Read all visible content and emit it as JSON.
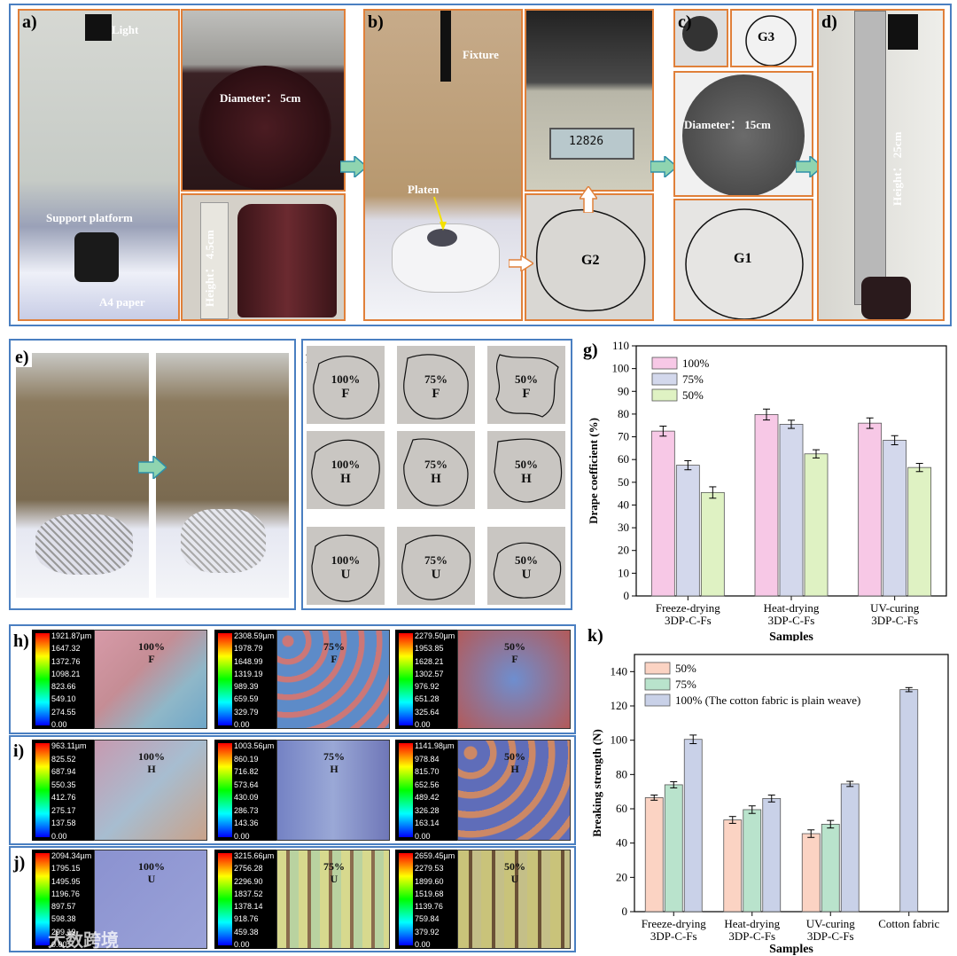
{
  "panels": {
    "a": {
      "label": "a)",
      "light": "Light",
      "support": "Support platform",
      "paper": "A4 paper",
      "diameter": "Diameter： 5cm",
      "height": "Height： 4.5cm"
    },
    "b": {
      "label": "b)",
      "fixture": "Fixture",
      "platen": "Platen",
      "scale_reading": "12826",
      "g2": "G2"
    },
    "c": {
      "label": "c)",
      "g3": "G3",
      "diameter": "Diameter： 15cm",
      "g1": "G1"
    },
    "d": {
      "label": "d)",
      "height": "Height： 25cm"
    },
    "e": {
      "label": "e)"
    },
    "f": {
      "label": "f)",
      "cells": [
        {
          "pct": "100%",
          "code": "F"
        },
        {
          "pct": "75%",
          "code": "F"
        },
        {
          "pct": "50%",
          "code": "F"
        },
        {
          "pct": "100%",
          "code": "H"
        },
        {
          "pct": "75%",
          "code": "H"
        },
        {
          "pct": "50%",
          "code": "H"
        },
        {
          "pct": "100%",
          "code": "U"
        },
        {
          "pct": "75%",
          "code": "U"
        },
        {
          "pct": "50%",
          "code": "U"
        }
      ]
    },
    "h": {
      "label": "h)",
      "code": "F",
      "maps": [
        {
          "pct": "100%",
          "scale": [
            "1921.87µm",
            "1647.32",
            "1372.76",
            "1098.21",
            "823.66",
            "549.10",
            "274.55",
            "0.00"
          ]
        },
        {
          "pct": "75%",
          "scale": [
            "2308.59µm",
            "1978.79",
            "1648.99",
            "1319.19",
            "989.39",
            "659.59",
            "329.79",
            "0.00"
          ]
        },
        {
          "pct": "50%",
          "scale": [
            "2279.50µm",
            "1953.85",
            "1628.21",
            "1302.57",
            "976.92",
            "651.28",
            "325.64",
            "0.00"
          ]
        }
      ]
    },
    "i": {
      "label": "i)",
      "code": "H",
      "maps": [
        {
          "pct": "100%",
          "scale": [
            "963.11µm",
            "825.52",
            "687.94",
            "550.35",
            "412.76",
            "275.17",
            "137.58",
            "0.00"
          ]
        },
        {
          "pct": "75%",
          "scale": [
            "1003.56µm",
            "860.19",
            "716.82",
            "573.64",
            "430.09",
            "286.73",
            "143.36",
            "0.00"
          ]
        },
        {
          "pct": "50%",
          "scale": [
            "1141.98µm",
            "978.84",
            "815.70",
            "652.56",
            "489.42",
            "326.28",
            "163.14",
            "0.00"
          ]
        }
      ]
    },
    "j": {
      "label": "j)",
      "code": "U",
      "maps": [
        {
          "pct": "100%",
          "scale": [
            "2094.34µm",
            "1795.15",
            "1495.95",
            "1196.76",
            "897.57",
            "598.38",
            "299.19",
            "0.00"
          ]
        },
        {
          "pct": "75%",
          "scale": [
            "3215.66µm",
            "2756.28",
            "2296.90",
            "1837.52",
            "1378.14",
            "918.76",
            "459.38",
            "0.00"
          ]
        },
        {
          "pct": "50%",
          "scale": [
            "2659.45µm",
            "2279.53",
            "1899.60",
            "1519.68",
            "1139.76",
            "759.84",
            "379.92",
            "0.00"
          ]
        }
      ]
    },
    "k": {
      "label": "k)"
    },
    "g": {
      "label": "g)"
    }
  },
  "watermark": "大数跨境",
  "chart_data": [
    {
      "id": "g",
      "type": "bar",
      "title": "",
      "xlabel": "Samples",
      "ylabel": "Drape coefficient (%)",
      "ylim": [
        0,
        110
      ],
      "yticks": [
        0,
        10,
        20,
        30,
        40,
        50,
        60,
        70,
        80,
        90,
        100,
        110
      ],
      "categories": [
        [
          "Freeze-drying",
          "3DP-C-Fs"
        ],
        [
          "Heat-drying",
          "3DP-C-Fs"
        ],
        [
          "UV-curing",
          "3DP-C-Fs"
        ]
      ],
      "legend_position": "top-left",
      "series": [
        {
          "name": "100%",
          "values": [
            72.5,
            79.8,
            76.0
          ],
          "errors": [
            2.2,
            2.4,
            2.3
          ],
          "color": "#f7c8e6"
        },
        {
          "name": "75%",
          "values": [
            57.5,
            75.5,
            68.5
          ],
          "errors": [
            2.0,
            1.8,
            2.0
          ],
          "color": "#d3d8ec"
        },
        {
          "name": "50%",
          "values": [
            45.5,
            62.5,
            56.5
          ],
          "errors": [
            2.5,
            1.8,
            1.8
          ],
          "color": "#dff2c3"
        }
      ]
    },
    {
      "id": "k",
      "type": "bar",
      "title": "",
      "xlabel": "Samples",
      "ylabel": "Breaking strength (N)",
      "ylim": [
        0,
        150
      ],
      "yticks": [
        0,
        20,
        40,
        60,
        80,
        100,
        120,
        140
      ],
      "categories": [
        [
          "Freeze-drying",
          "3DP-C-Fs"
        ],
        [
          "Heat-drying",
          "3DP-C-Fs"
        ],
        [
          "UV-curing",
          "3DP-C-Fs"
        ],
        [
          "Cotton fabric"
        ]
      ],
      "legend_position": "top-left",
      "series": [
        {
          "name": "50%",
          "values": [
            66.5,
            53.5,
            45.5,
            null
          ],
          "errors": [
            1.5,
            2.0,
            2.2,
            null
          ],
          "color": "#fbd3c3"
        },
        {
          "name": "75%",
          "values": [
            74.0,
            59.5,
            51.0,
            null
          ],
          "errors": [
            1.8,
            2.2,
            2.2,
            null
          ],
          "color": "#b9e3cc"
        },
        {
          "name": "100% (The cotton fabric is plain weave)",
          "values": [
            100.5,
            66.0,
            74.5,
            129.5
          ],
          "errors": [
            2.5,
            2.0,
            1.5,
            1.2
          ],
          "color": "#c9d1e8"
        }
      ]
    }
  ]
}
